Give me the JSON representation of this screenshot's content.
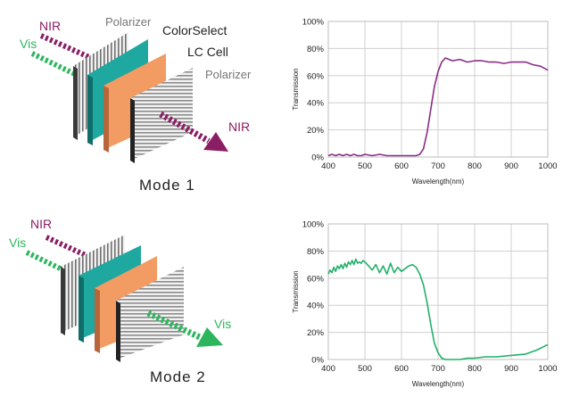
{
  "colors": {
    "nir": "#8a1e64",
    "vis": "#2db55d",
    "teal": "#1fa8a0",
    "orange": "#f29b63",
    "line1": "#8a2d86",
    "line2": "#22b06a",
    "grid": "#d0d0d0"
  },
  "mode1": {
    "title": "Mode 1",
    "labels": {
      "nir_in": "NIR",
      "vis_in": "Vis",
      "polarizer_front": "Polarizer",
      "colorselect": "ColorSelect",
      "lc_cell": "LC Cell",
      "polarizer_back": "Polarizer",
      "out": "NIR"
    }
  },
  "mode2": {
    "title": "Mode 2",
    "labels": {
      "nir_in": "NIR",
      "vis_in": "Vis",
      "out": "Vis"
    }
  },
  "chart_data": [
    {
      "type": "line",
      "title": "",
      "xlabel": "Wavelength(nm)",
      "ylabel": "Transmission",
      "xlim": [
        400,
        1000
      ],
      "ylim": [
        0,
        100
      ],
      "x_ticks": [
        "400",
        "500",
        "600",
        "700",
        "800",
        "900",
        "1000"
      ],
      "y_ticks": [
        "0%",
        "20%",
        "40%",
        "60%",
        "80%",
        "100%"
      ],
      "grid": true,
      "series": [
        {
          "name": "Mode 1",
          "x": [
            400,
            410,
            420,
            430,
            440,
            450,
            460,
            470,
            480,
            490,
            500,
            520,
            540,
            560,
            580,
            600,
            620,
            640,
            650,
            660,
            670,
            680,
            690,
            700,
            710,
            720,
            730,
            740,
            760,
            780,
            800,
            820,
            840,
            860,
            880,
            900,
            920,
            940,
            960,
            980,
            1000
          ],
          "y": [
            1,
            2,
            1,
            2,
            1,
            2,
            1,
            2,
            1,
            1,
            2,
            1,
            2,
            1,
            1,
            1,
            1,
            1,
            2,
            6,
            18,
            35,
            52,
            63,
            70,
            73,
            72,
            71,
            72,
            70,
            71,
            71,
            70,
            70,
            69,
            70,
            70,
            70,
            68,
            67,
            64
          ]
        }
      ]
    },
    {
      "type": "line",
      "title": "",
      "xlabel": "Wavelength(nm)",
      "ylabel": "Transmission",
      "xlim": [
        400,
        1000
      ],
      "ylim": [
        0,
        100
      ],
      "x_ticks": [
        "400",
        "500",
        "600",
        "700",
        "800",
        "900",
        "1000"
      ],
      "y_ticks": [
        "0%",
        "20%",
        "40%",
        "60%",
        "80%",
        "100%"
      ],
      "grid": true,
      "series": [
        {
          "name": "Mode 2",
          "x": [
            400,
            405,
            410,
            415,
            420,
            425,
            430,
            435,
            440,
            445,
            450,
            455,
            460,
            465,
            470,
            475,
            480,
            485,
            490,
            495,
            500,
            510,
            520,
            530,
            540,
            550,
            560,
            570,
            580,
            590,
            600,
            610,
            620,
            630,
            640,
            650,
            660,
            670,
            680,
            690,
            700,
            710,
            720,
            730,
            740,
            760,
            780,
            800,
            830,
            860,
            900,
            940,
            970,
            1000
          ],
          "y": [
            63,
            66,
            64,
            68,
            65,
            69,
            67,
            70,
            67,
            71,
            68,
            72,
            70,
            73,
            70,
            74,
            71,
            72,
            71,
            73,
            72,
            69,
            66,
            70,
            64,
            69,
            63,
            71,
            64,
            68,
            65,
            67,
            69,
            70,
            68,
            63,
            55,
            42,
            26,
            12,
            5,
            1,
            0,
            0,
            0,
            0,
            1,
            1,
            2,
            2,
            3,
            4,
            7,
            11
          ]
        }
      ]
    }
  ]
}
